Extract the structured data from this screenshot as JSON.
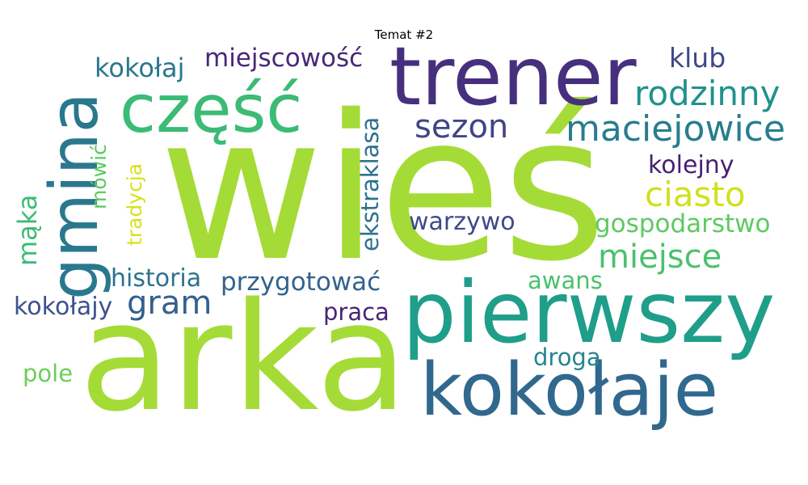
{
  "title": "Temat #2",
  "words": [
    {
      "text": "wieś",
      "color": "#a5db36"
    },
    {
      "text": "arka",
      "color": "#a5db36"
    },
    {
      "text": "pierwszy",
      "color": "#1f9e89"
    },
    {
      "text": "kokołaje",
      "color": "#31688e"
    },
    {
      "text": "trener",
      "color": "#46307e"
    },
    {
      "text": "część",
      "color": "#3bbb75"
    },
    {
      "text": "gmina",
      "color": "#2a788e"
    },
    {
      "text": "maciejowice",
      "color": "#287d8e"
    },
    {
      "text": "rodzinny",
      "color": "#21918c"
    },
    {
      "text": "ciasto",
      "color": "#d0e11c"
    },
    {
      "text": "sezon",
      "color": "#414487"
    },
    {
      "text": "miejsce",
      "color": "#4ac16d"
    },
    {
      "text": "gospodarstwo",
      "color": "#5ec962"
    },
    {
      "text": "klub",
      "color": "#3e4989"
    },
    {
      "text": "kolejny",
      "color": "#481f70"
    },
    {
      "text": "kokołaj",
      "color": "#2a788e"
    },
    {
      "text": "miejscowość",
      "color": "#482878"
    },
    {
      "text": "gram",
      "color": "#355f8d"
    },
    {
      "text": "historia",
      "color": "#2c728e"
    },
    {
      "text": "przygotować",
      "color": "#33638d"
    },
    {
      "text": "awans",
      "color": "#4ac16d"
    },
    {
      "text": "warzywo",
      "color": "#3e4a89"
    },
    {
      "text": "kokołajy",
      "color": "#3b528b"
    },
    {
      "text": "praca",
      "color": "#482475"
    },
    {
      "text": "droga",
      "color": "#25858e"
    },
    {
      "text": "pole",
      "color": "#6ece58"
    },
    {
      "text": "ekstraklasa",
      "color": "#2c728e"
    },
    {
      "text": "tradycja",
      "color": "#d8e219"
    },
    {
      "text": "mówić",
      "color": "#5ec962"
    },
    {
      "text": "mąka",
      "color": "#3bbb75"
    }
  ]
}
